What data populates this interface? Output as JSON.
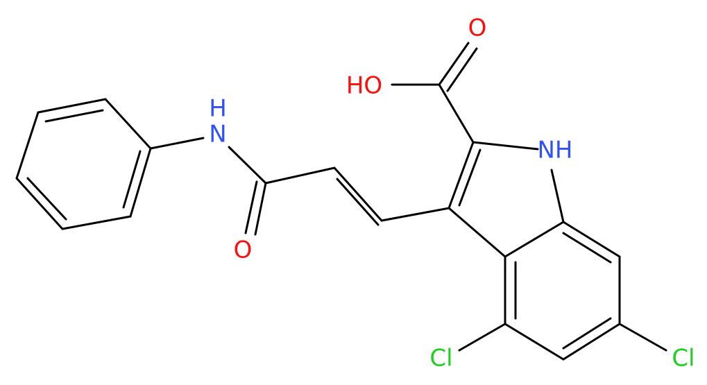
{
  "atoms": [
    {
      "label": "HO"
    },
    {
      "label": "O"
    },
    {
      "label": "NH"
    },
    {
      "label": "H"
    },
    {
      "label": "N"
    },
    {
      "label": "O"
    },
    {
      "label": "Cl"
    },
    {
      "label": "Cl"
    }
  ]
}
